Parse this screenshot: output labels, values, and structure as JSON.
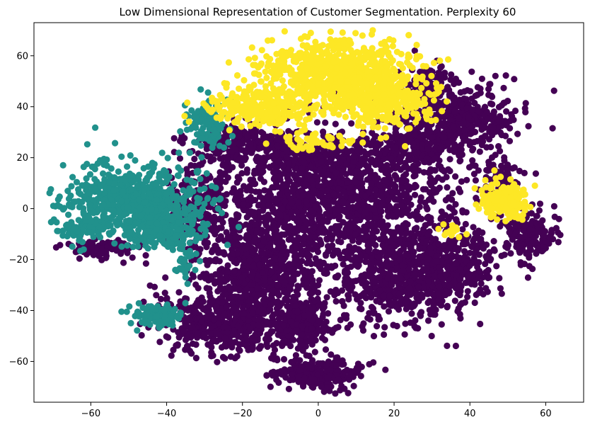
{
  "chart_data": {
    "type": "scatter",
    "title": "Low Dimensional Representation of Customer Segmentation. Perplexity 60",
    "xlabel": "",
    "ylabel": "",
    "xlim": [
      -75,
      70
    ],
    "ylim": [
      -76,
      73
    ],
    "xticks": [
      -60,
      -40,
      -20,
      0,
      20,
      40,
      60
    ],
    "yticks": [
      -60,
      -40,
      -20,
      0,
      20,
      40,
      60
    ],
    "xtick_labels": [
      "−60",
      "−40",
      "−20",
      "0",
      "20",
      "40",
      "60"
    ],
    "ytick_labels": [
      "−60",
      "−40",
      "−20",
      "0",
      "20",
      "40",
      "60"
    ],
    "grid": false,
    "legend": "none",
    "series": [
      {
        "color": "#440154",
        "clusters": [
          {
            "cx": 5,
            "cy": 5,
            "sx": 16,
            "sy": 12,
            "n": 1400
          },
          {
            "cx": -15,
            "cy": -25,
            "sx": 9,
            "sy": 10,
            "n": 650
          },
          {
            "cx": -25,
            "cy": -45,
            "sx": 9,
            "sy": 6,
            "n": 450
          },
          {
            "cx": -5,
            "cy": -45,
            "sx": 4,
            "sy": 6,
            "n": 220
          },
          {
            "cx": 0,
            "cy": -65,
            "sx": 6,
            "sy": 3,
            "n": 220
          },
          {
            "cx": 22,
            "cy": -27,
            "sx": 9,
            "sy": 10,
            "n": 600
          },
          {
            "cx": 36,
            "cy": -22,
            "sx": 6,
            "sy": 8,
            "n": 260
          },
          {
            "cx": 38,
            "cy": 35,
            "sx": 8,
            "sy": 7,
            "n": 380
          },
          {
            "cx": 25,
            "cy": 25,
            "sx": 6,
            "sy": 5,
            "n": 200
          },
          {
            "cx": 28,
            "cy": 48,
            "sx": 3,
            "sy": 5,
            "n": 100
          },
          {
            "cx": -20,
            "cy": 25,
            "sx": 6,
            "sy": 4,
            "n": 200
          },
          {
            "cx": 0,
            "cy": 20,
            "sx": 8,
            "sy": 4,
            "n": 200
          },
          {
            "cx": 56,
            "cy": -10,
            "sx": 4,
            "sy": 5,
            "n": 170
          },
          {
            "cx": 48,
            "cy": 12,
            "sx": 3,
            "sy": 4,
            "n": 70
          },
          {
            "cx": -58,
            "cy": -16,
            "sx": 5,
            "sy": 2,
            "n": 90
          },
          {
            "cx": -32,
            "cy": 0,
            "sx": 4,
            "sy": 8,
            "n": 200
          }
        ]
      },
      {
        "color": "#21918c",
        "clusters": [
          {
            "cx": -48,
            "cy": 3,
            "sx": 9,
            "sy": 7,
            "n": 720
          },
          {
            "cx": -40,
            "cy": -8,
            "sx": 5,
            "sy": 4,
            "n": 150
          },
          {
            "cx": -42,
            "cy": -42,
            "sx": 3,
            "sy": 2.5,
            "n": 110
          },
          {
            "cx": -29,
            "cy": 33,
            "sx": 3,
            "sy": 6,
            "n": 120
          },
          {
            "cx": -62,
            "cy": -8,
            "sx": 3,
            "sy": 2,
            "n": 60
          },
          {
            "cx": -35,
            "cy": -22,
            "sx": 2,
            "sy": 3,
            "n": 25
          }
        ]
      },
      {
        "color": "#fde725",
        "clusters": [
          {
            "cx": 5,
            "cy": 52,
            "sx": 10,
            "sy": 7,
            "n": 800
          },
          {
            "cx": -15,
            "cy": 40,
            "sx": 7,
            "sy": 4,
            "n": 280
          },
          {
            "cx": 18,
            "cy": 42,
            "sx": 6,
            "sy": 6,
            "n": 250
          },
          {
            "cx": 49,
            "cy": 3,
            "sx": 3,
            "sy": 3.5,
            "n": 170
          },
          {
            "cx": 0,
            "cy": 27,
            "sx": 5,
            "sy": 2,
            "n": 60
          },
          {
            "cx": 35,
            "cy": -9,
            "sx": 2,
            "sy": 2,
            "n": 15
          }
        ]
      }
    ]
  }
}
